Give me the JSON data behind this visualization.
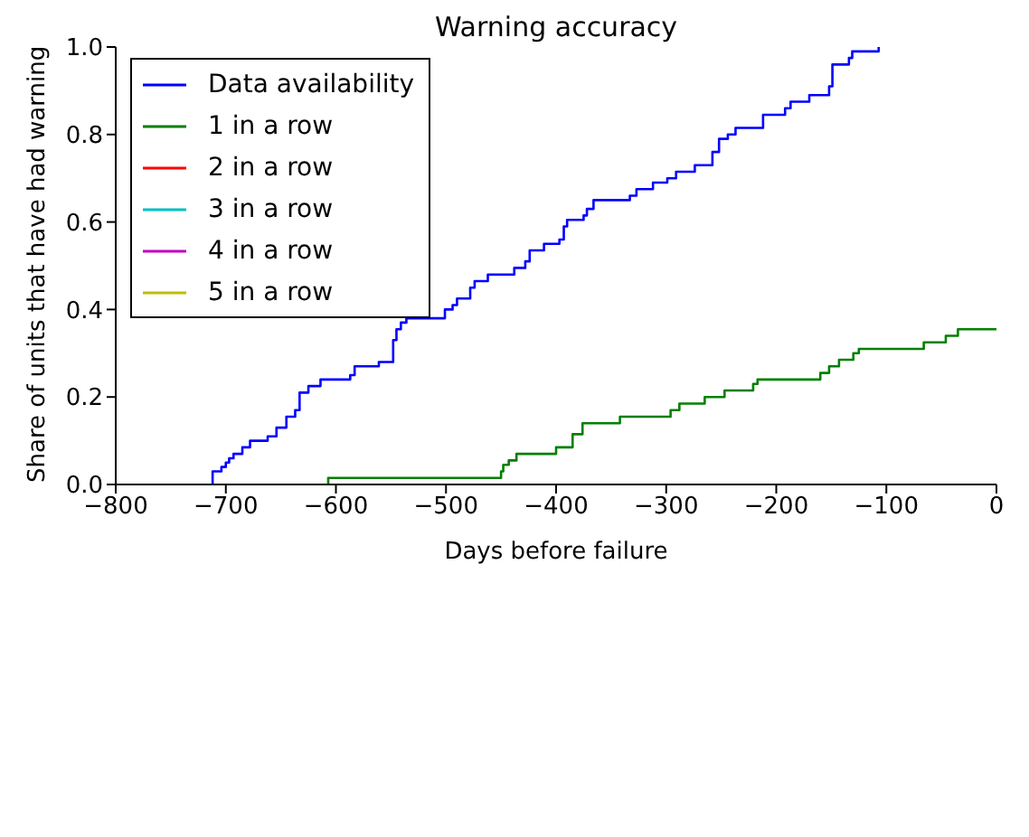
{
  "chart_data": {
    "type": "step",
    "title": "Warning accuracy",
    "xlabel": "Days before failure",
    "ylabel": "Share of units that have had warning",
    "xlim": [
      -800,
      0
    ],
    "ylim": [
      0,
      1
    ],
    "xticks": [
      {
        "value": -800,
        "label": "−800"
      },
      {
        "value": -700,
        "label": "−700"
      },
      {
        "value": -600,
        "label": "−600"
      },
      {
        "value": -500,
        "label": "−500"
      },
      {
        "value": -400,
        "label": "−400"
      },
      {
        "value": -300,
        "label": "−300"
      },
      {
        "value": -200,
        "label": "−200"
      },
      {
        "value": -100,
        "label": "−100"
      },
      0
    ],
    "yticks": [
      {
        "value": 0,
        "label": "0.0"
      },
      {
        "value": 0.2,
        "label": "0.2"
      },
      {
        "value": 0.4,
        "label": "0.4"
      },
      {
        "value": 0.6,
        "label": "0.6"
      },
      {
        "value": 0.8,
        "label": "0.8"
      },
      {
        "value": 1,
        "label": "1.0"
      }
    ],
    "legend": "top left",
    "grid": false,
    "series": [
      {
        "name": "Data availability",
        "color": "#0000ff",
        "x": [
          -713,
          -712,
          -704,
          -700,
          -697,
          -693,
          -685,
          -678,
          -662,
          -654,
          -645,
          -637,
          -633,
          -625,
          -614,
          -587,
          -583,
          -561,
          -548,
          -545,
          -541,
          -536,
          -501,
          -494,
          -490,
          -478,
          -474,
          -462,
          -438,
          -428,
          -424,
          -411,
          -397,
          -393,
          -390,
          -375,
          -372,
          -366,
          -333,
          -327,
          -312,
          -299,
          -291,
          -274,
          -258,
          -252,
          -244,
          -237,
          -212,
          -192,
          -187,
          -170,
          -152,
          -149,
          -134,
          -131,
          -107
        ],
        "values": [
          0,
          0.03,
          0.04,
          0.05,
          0.06,
          0.07,
          0.085,
          0.1,
          0.11,
          0.13,
          0.155,
          0.17,
          0.21,
          0.225,
          0.24,
          0.25,
          0.27,
          0.28,
          0.33,
          0.355,
          0.37,
          0.38,
          0.4,
          0.41,
          0.425,
          0.45,
          0.465,
          0.48,
          0.495,
          0.51,
          0.535,
          0.55,
          0.56,
          0.59,
          0.605,
          0.615,
          0.63,
          0.65,
          0.66,
          0.675,
          0.69,
          0.7,
          0.715,
          0.73,
          0.76,
          0.79,
          0.8,
          0.815,
          0.845,
          0.86,
          0.875,
          0.89,
          0.91,
          0.96,
          0.975,
          0.99,
          1
        ]
      },
      {
        "name": "1 in a row",
        "color": "#008000",
        "x": [
          -608,
          -607,
          -450,
          -448,
          -443,
          -436,
          -400,
          -385,
          -376,
          -342,
          -296,
          -288,
          -265,
          -247,
          -221,
          -217,
          -160,
          -152,
          -143,
          -130,
          -125,
          -66,
          -46,
          -35,
          0
        ],
        "values": [
          0,
          0.015,
          0.03,
          0.045,
          0.055,
          0.07,
          0.085,
          0.115,
          0.14,
          0.155,
          0.17,
          0.185,
          0.2,
          0.215,
          0.23,
          0.24,
          0.255,
          0.27,
          0.285,
          0.3,
          0.31,
          0.325,
          0.34,
          0.355,
          0.355
        ]
      },
      {
        "name": "2 in a row",
        "color": "#ff0000"
      },
      {
        "name": "3 in a row",
        "color": "#00bfbf"
      },
      {
        "name": "4 in a row",
        "color": "#bf00bf"
      },
      {
        "name": "5 in a row",
        "color": "#bfbf00"
      }
    ]
  }
}
